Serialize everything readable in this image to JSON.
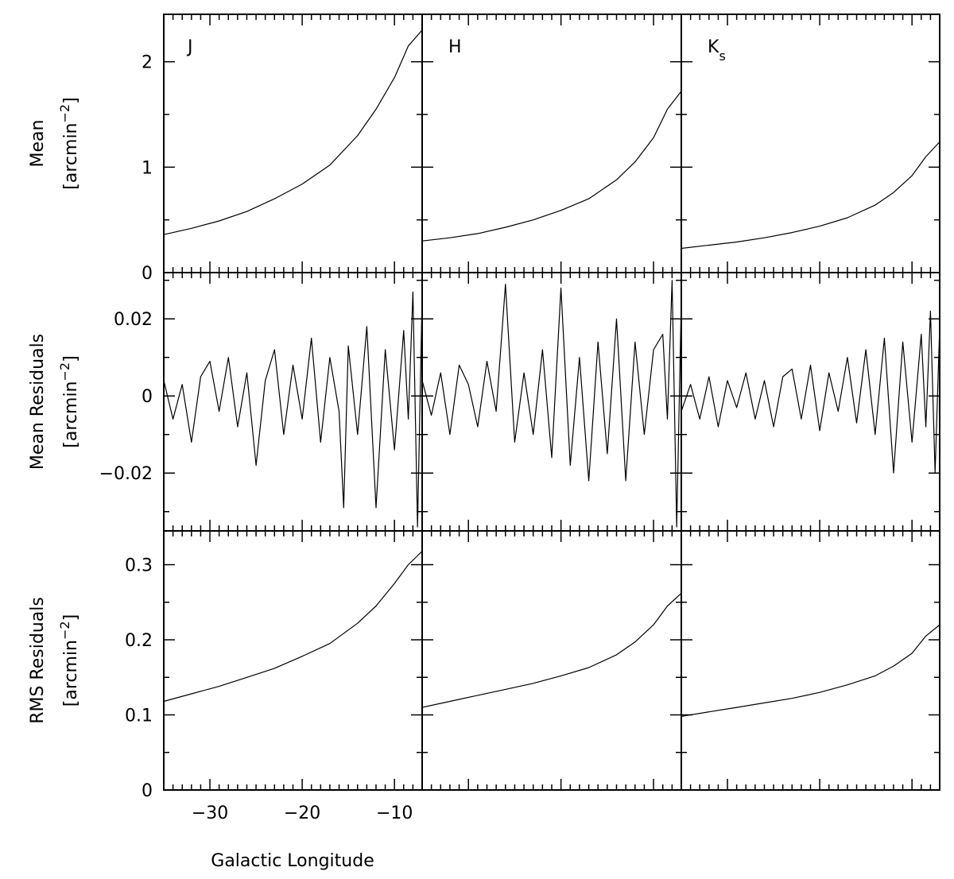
{
  "chart_data": {
    "type": "line",
    "panel_labels": [
      "J",
      "H",
      "K",
      "s"
    ],
    "x_label": "Galactic Longitude",
    "x_range": [
      -35,
      -7
    ],
    "x_tick_labels": [
      {
        "value": -30,
        "text": "−30"
      },
      {
        "value": -20,
        "text": "−20"
      },
      {
        "value": -10,
        "text": "−10"
      }
    ],
    "rows": [
      {
        "key": "mean",
        "ylabel_line1": "Mean",
        "ylabel_line2": "[arcmin",
        "ylabel_exp": "−2",
        "ylabel_close": "]",
        "ylim": [
          0,
          2.45
        ],
        "y_tick_labels": [
          {
            "value": 0,
            "text": "0"
          },
          {
            "value": 1,
            "text": "1"
          },
          {
            "value": 2,
            "text": "2"
          }
        ],
        "series": [
          {
            "band": "J",
            "x": [
              -35,
              -32,
              -29,
              -26,
              -23,
              -20,
              -17,
              -14,
              -12,
              -10,
              -8.5,
              -7
            ],
            "y": [
              0.36,
              0.42,
              0.49,
              0.58,
              0.7,
              0.84,
              1.02,
              1.3,
              1.55,
              1.85,
              2.15,
              2.3
            ]
          },
          {
            "band": "H",
            "x": [
              -35,
              -32,
              -29,
              -26,
              -23,
              -20,
              -17,
              -14,
              -12,
              -10,
              -8.5,
              -7
            ],
            "y": [
              0.3,
              0.33,
              0.37,
              0.43,
              0.5,
              0.59,
              0.7,
              0.88,
              1.05,
              1.28,
              1.55,
              1.72
            ]
          },
          {
            "band": "Ks",
            "x": [
              -35,
              -32,
              -29,
              -26,
              -23,
              -20,
              -17,
              -14,
              -12,
              -10,
              -8.5,
              -7
            ],
            "y": [
              0.23,
              0.26,
              0.29,
              0.33,
              0.38,
              0.44,
              0.52,
              0.64,
              0.76,
              0.92,
              1.1,
              1.24
            ]
          }
        ]
      },
      {
        "key": "mean_residuals",
        "ylabel_line1": "Mean Residuals",
        "ylabel_line2": "[arcmin",
        "ylabel_exp": "−2",
        "ylabel_close": "]",
        "ylim": [
          -0.035,
          0.032
        ],
        "y_tick_labels": [
          {
            "value": -0.02,
            "text": "−0.02"
          },
          {
            "value": 0,
            "text": "0"
          },
          {
            "value": 0.02,
            "text": "0.02"
          }
        ],
        "series": [
          {
            "band": "J",
            "x": [
              -35,
              -34,
              -33,
              -32,
              -31,
              -30,
              -29,
              -28,
              -27,
              -26,
              -25,
              -24,
              -23,
              -22,
              -21,
              -20,
              -19,
              -18,
              -17,
              -16,
              -15.5,
              -15,
              -14,
              -13,
              -12,
              -11,
              -10,
              -9,
              -8.5,
              -8,
              -7.5,
              -7
            ],
            "y": [
              0.004,
              -0.006,
              0.003,
              -0.012,
              0.005,
              0.009,
              -0.004,
              0.01,
              -0.008,
              0.006,
              -0.018,
              0.004,
              0.012,
              -0.01,
              0.008,
              -0.006,
              0.015,
              -0.012,
              0.01,
              -0.004,
              -0.029,
              0.013,
              -0.01,
              0.018,
              -0.029,
              0.012,
              -0.014,
              0.017,
              -0.006,
              0.027,
              -0.034,
              0.026
            ]
          },
          {
            "band": "H",
            "x": [
              -35,
              -34,
              -33,
              -32,
              -31,
              -30,
              -29,
              -28,
              -27,
              -26,
              -25,
              -24,
              -23,
              -22,
              -21,
              -20,
              -19,
              -18,
              -17,
              -16,
              -15,
              -14,
              -13,
              -12,
              -11,
              -10,
              -9,
              -8.5,
              -8,
              -7.5,
              -7
            ],
            "y": [
              0.004,
              -0.005,
              0.006,
              -0.01,
              0.008,
              0.003,
              -0.008,
              0.009,
              -0.004,
              0.029,
              -0.012,
              0.006,
              -0.01,
              0.012,
              -0.016,
              0.028,
              -0.018,
              0.01,
              -0.022,
              0.014,
              -0.015,
              0.02,
              -0.022,
              0.014,
              -0.01,
              0.012,
              0.016,
              -0.006,
              0.03,
              -0.034,
              0.025
            ]
          },
          {
            "band": "Ks",
            "x": [
              -35,
              -34,
              -33,
              -32,
              -31,
              -30,
              -29,
              -28,
              -27,
              -26,
              -25,
              -24,
              -23,
              -22,
              -21,
              -20,
              -19,
              -18,
              -17,
              -16,
              -15,
              -14,
              -13,
              -12,
              -11,
              -10,
              -9,
              -8.5,
              -8,
              -7.5,
              -7
            ],
            "y": [
              -0.004,
              0.003,
              -0.006,
              0.005,
              -0.008,
              0.004,
              -0.003,
              0.006,
              -0.006,
              0.004,
              -0.008,
              0.005,
              0.007,
              -0.006,
              0.008,
              -0.009,
              0.006,
              -0.004,
              0.01,
              -0.007,
              0.012,
              -0.01,
              0.015,
              -0.02,
              0.014,
              -0.012,
              0.016,
              -0.008,
              0.022,
              -0.02,
              0.018
            ]
          }
        ]
      },
      {
        "key": "rms_residuals",
        "ylabel_line1": "RMS Residuals",
        "ylabel_line2": "[arcmin",
        "ylabel_exp": "−2",
        "ylabel_close": "]",
        "ylim": [
          0,
          0.345
        ],
        "y_tick_labels": [
          {
            "value": 0,
            "text": "0"
          },
          {
            "value": 0.1,
            "text": "0.1"
          },
          {
            "value": 0.2,
            "text": "0.2"
          },
          {
            "value": 0.3,
            "text": "0.3"
          }
        ],
        "series": [
          {
            "band": "J",
            "x": [
              -35,
              -32,
              -29,
              -26,
              -23,
              -20,
              -17,
              -14,
              -12,
              -10,
              -8.5,
              -7
            ],
            "y": [
              0.118,
              0.128,
              0.138,
              0.15,
              0.162,
              0.178,
              0.195,
              0.222,
              0.245,
              0.275,
              0.3,
              0.318
            ]
          },
          {
            "band": "H",
            "x": [
              -35,
              -32,
              -29,
              -26,
              -23,
              -20,
              -17,
              -14,
              -12,
              -10,
              -8.5,
              -7
            ],
            "y": [
              0.11,
              0.118,
              0.126,
              0.134,
              0.142,
              0.152,
              0.163,
              0.18,
              0.197,
              0.22,
              0.245,
              0.262
            ]
          },
          {
            "band": "Ks",
            "x": [
              -35,
              -32,
              -29,
              -26,
              -23,
              -20,
              -17,
              -14,
              -12,
              -10,
              -8.5,
              -7
            ],
            "y": [
              0.098,
              0.104,
              0.11,
              0.116,
              0.122,
              0.13,
              0.14,
              0.152,
              0.165,
              0.182,
              0.205,
              0.22
            ]
          }
        ]
      }
    ]
  }
}
